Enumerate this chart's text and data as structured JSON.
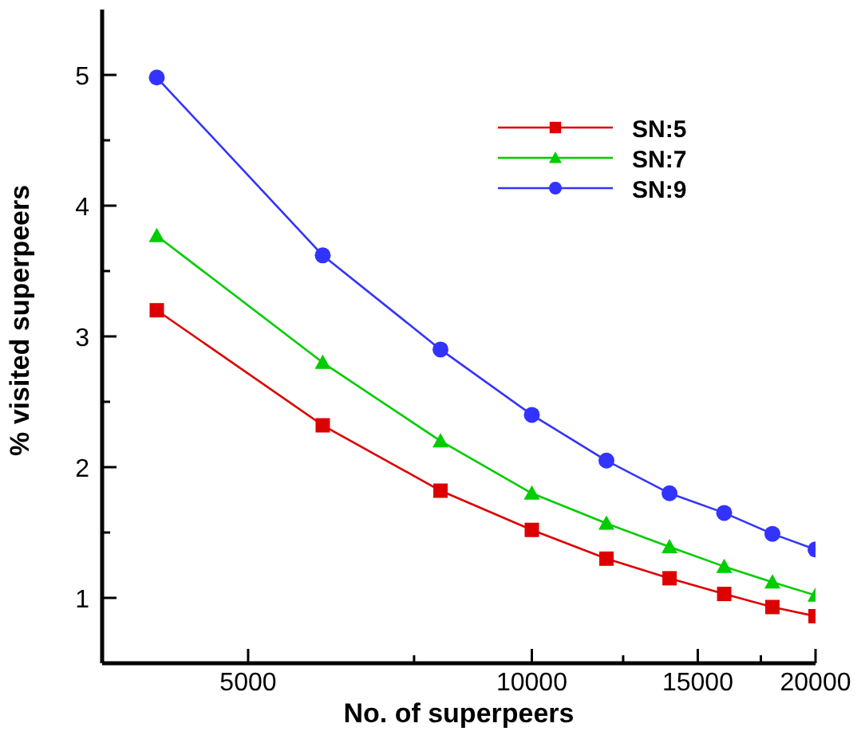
{
  "chart_data": {
    "type": "line",
    "xlabel": "No. of superpeers",
    "ylabel": "% visited superpeers",
    "log": "x",
    "x": [
      4000,
      6000,
      8000,
      10000,
      12000,
      14000,
      16000,
      18000,
      20000
    ],
    "xlim": [
      3500,
      20000
    ],
    "xticks": [
      5000,
      {
        "value": 7500,
        "label": null
      },
      10000,
      {
        "value": 12500,
        "label": null
      },
      15000,
      {
        "value": 17500,
        "label": null
      },
      20000
    ],
    "ylim": [
      0.5,
      5.5
    ],
    "yticks": [
      {
        "value": 1.5,
        "label": null
      },
      1,
      2,
      {
        "value": 2.5,
        "label": null
      },
      3,
      {
        "value": 3.5,
        "label": null
      },
      4,
      {
        "value": 4.5,
        "label": null
      },
      5
    ],
    "grid": false,
    "legend": "top right",
    "series": [
      {
        "name": "SN:5",
        "color": "#dd0000",
        "marker": "square",
        "values": [
          3.2,
          2.32,
          1.82,
          1.52,
          1.3,
          1.15,
          1.03,
          0.93,
          0.86
        ]
      },
      {
        "name": "SN:7",
        "color": "#00cc00",
        "marker": "triangle",
        "values": [
          3.77,
          2.8,
          2.2,
          1.8,
          1.57,
          1.39,
          1.24,
          1.12,
          1.02
        ]
      },
      {
        "name": "SN:9",
        "color": "#3333ff",
        "marker": "circle",
        "values": [
          4.98,
          3.62,
          2.9,
          2.4,
          2.05,
          1.8,
          1.65,
          1.49,
          1.37
        ]
      }
    ]
  }
}
